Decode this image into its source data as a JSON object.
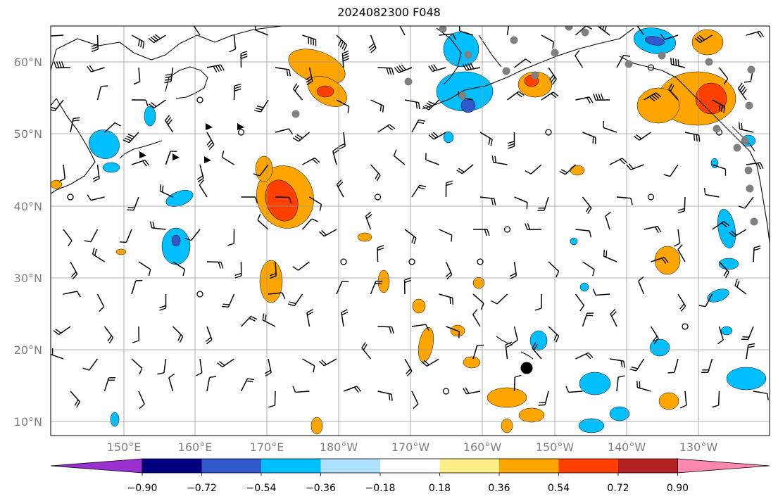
{
  "title": "2024082300 F048",
  "map": {
    "lat_ticks": [
      "60°N",
      "50°N",
      "40°N",
      "30°N",
      "20°N",
      "10°N"
    ],
    "lon_ticks": [
      "150°E",
      "160°E",
      "170°E",
      "180°W",
      "170°W",
      "160°W",
      "150°W",
      "140°W",
      "130°W"
    ]
  },
  "colorbar": {
    "colors": [
      "#9b30d0",
      "#000080",
      "#3158cc",
      "#00bfff",
      "#b0e0ff",
      "#ffffff",
      "#ffee88",
      "#ffa500",
      "#ff4000",
      "#b22222",
      "#ff88b0"
    ],
    "ticks": [
      "−0.90",
      "−0.72",
      "−0.54",
      "−0.36",
      "−0.18",
      "0.18",
      "0.36",
      "0.54",
      "0.72",
      "0.90"
    ]
  }
}
